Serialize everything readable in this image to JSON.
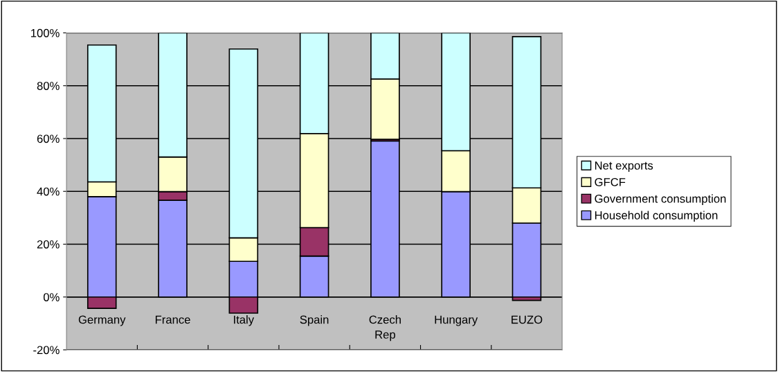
{
  "chart_data": {
    "type": "bar",
    "stacked": true,
    "categories": [
      "Germany",
      "France",
      "Italy",
      "Spain",
      "Czech\nRep",
      "Hungary",
      "EUZO"
    ],
    "series": [
      {
        "name": "Household consumption",
        "color": "#9999ff",
        "values": [
          38.0,
          36.6,
          13.5,
          15.5,
          59.1,
          39.9,
          28.0
        ]
      },
      {
        "name": "Government consumption",
        "color": "#993366",
        "values": [
          -4.3,
          3.3,
          -6.1,
          10.8,
          0.6,
          null,
          -1.3
        ]
      },
      {
        "name": "GFCF",
        "color": "#ffffcc",
        "values": [
          5.6,
          13.1,
          8.9,
          35.6,
          22.8,
          15.5,
          13.3
        ]
      },
      {
        "name": "Net exports",
        "color": "#ccffff",
        "values": [
          51.8,
          47.0,
          71.5,
          38.1,
          17.5,
          44.6,
          57.3
        ]
      }
    ],
    "ylim": [
      -20,
      100
    ],
    "yticks": [
      {
        "value": -20,
        "label": "-20%"
      },
      {
        "value": 0,
        "label": "0%"
      },
      {
        "value": 20,
        "label": "20%"
      },
      {
        "value": 40,
        "label": "40%"
      },
      {
        "value": 60,
        "label": "60%"
      },
      {
        "value": 80,
        "label": "80%"
      },
      {
        "value": 100,
        "label": "100%"
      }
    ],
    "grid": "y",
    "legend": "right"
  }
}
